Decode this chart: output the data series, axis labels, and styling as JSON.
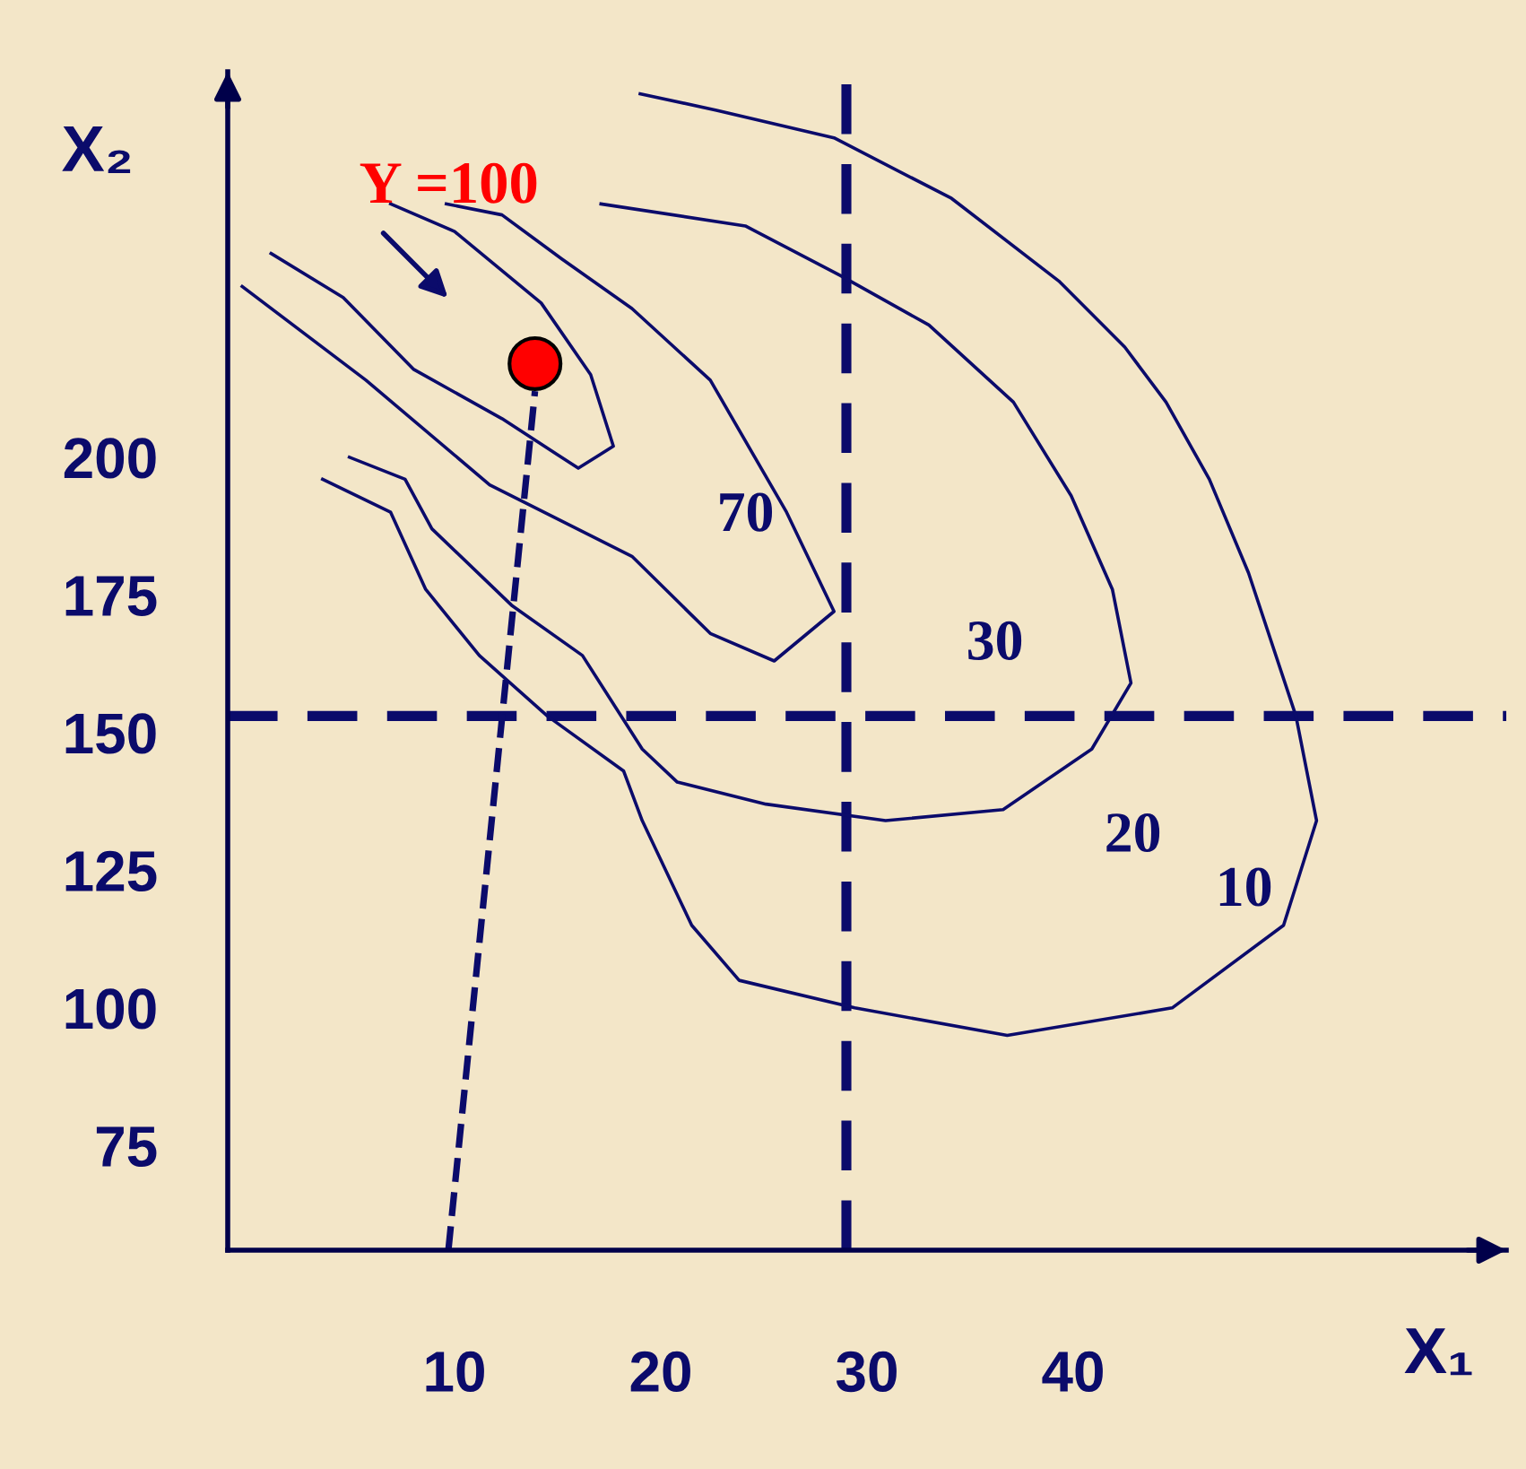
{
  "chart_data": {
    "type": "line",
    "xlabel": "X₁",
    "ylabel": "X₂",
    "xlim": [
      -1,
      61
    ],
    "ylim": [
      56,
      270
    ],
    "xticks": [
      10,
      20,
      30,
      40
    ],
    "yticks": [
      75,
      100,
      125,
      150,
      175,
      200
    ],
    "grid": false,
    "legend": false,
    "line_style": "solid",
    "marker": "none",
    "series": [
      {
        "color": "#0b0b6b",
        "x": [
          1.1,
          4.6,
          8.0,
          12.3,
          16.0,
          17.7,
          16.6,
          14.2,
          10.0,
          6.9
        ],
        "values": [
          237,
          229,
          216,
          207,
          198,
          202,
          215,
          228,
          241,
          246
        ]
      },
      {
        "color": "#0b0b6b",
        "x": [
          -0.3,
          5.7,
          11.7,
          18.6,
          22.4,
          25.5,
          28.4,
          26.1,
          22.4,
          18.6,
          15.2,
          12.3,
          9.6
        ],
        "values": [
          231,
          214,
          195,
          182,
          168,
          163,
          172,
          190,
          214,
          227,
          236,
          244,
          246
        ]
      },
      {
        "color": "#0b0b6b",
        "x": [
          4.9,
          7.6,
          8.9,
          12.8,
          16.2,
          19.1,
          20.8,
          25.1,
          30.9,
          36.6,
          40.9,
          42.8,
          41.9,
          39.9,
          37.1,
          33.0,
          28.7,
          24.1,
          17.1
        ],
        "values": [
          200,
          196,
          187,
          173,
          164,
          147,
          141,
          137,
          134,
          136,
          147,
          159,
          176,
          193,
          210,
          224,
          233,
          242,
          246
        ]
      },
      {
        "color": "#0b0b6b",
        "x": [
          3.6,
          6.9,
          8.6,
          11.2,
          14.5,
          18.2,
          19.1,
          21.5,
          23.8,
          29.4,
          36.8,
          44.8,
          50.2,
          51.8,
          50.8,
          48.5,
          46.6,
          44.5,
          42.5,
          39.3,
          34.1,
          28.4,
          22.7,
          19.0
        ],
        "values": [
          196,
          190,
          176,
          164,
          153,
          143,
          134,
          115,
          105,
          100,
          95,
          100,
          115,
          134,
          153,
          179,
          196,
          210,
          220,
          232,
          247,
          258,
          263,
          266
        ]
      },
      {
        "type": "line",
        "line_style": "dashed",
        "color": "#0b0b6b",
        "x": [
          9.7,
          13.9
        ],
        "values": [
          56,
          212
        ]
      },
      {
        "type": "scatter",
        "marker": "circle",
        "color": "#ff0000",
        "x": [
          13.9
        ],
        "values": [
          217
        ]
      }
    ],
    "ref_lines": [
      {
        "axis": "x",
        "value": 29,
        "label": null,
        "color": "#0b0b6b",
        "line_style": "dashed"
      },
      {
        "axis": "y",
        "value": 153,
        "label": null,
        "color": "#0b0b6b",
        "line_style": "dashed"
      }
    ],
    "annotations": [
      "Y =100",
      "70",
      "30",
      "20",
      "10"
    ]
  }
}
